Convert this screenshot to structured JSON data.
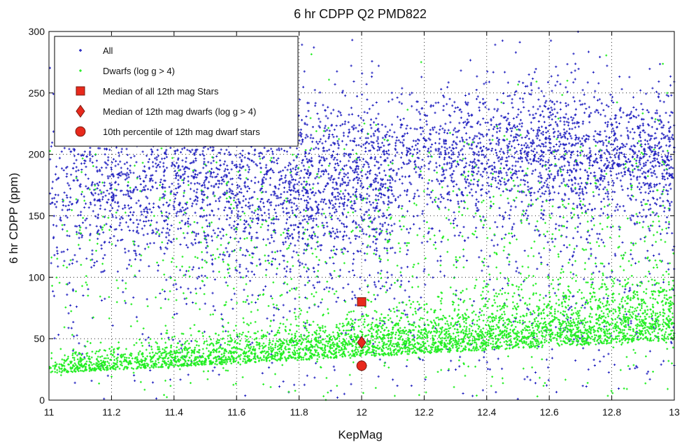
{
  "chart_data": {
    "type": "scatter",
    "title": "6 hr CDPP Q2 PMD822",
    "xlabel": "KepMag",
    "ylabel": "6 hr CDPP (ppm)",
    "xlim": [
      11,
      13
    ],
    "ylim": [
      0,
      300
    ],
    "xticks": [
      "11",
      "11.2",
      "11.4",
      "11.6",
      "11.8",
      "12",
      "12.2",
      "12.4",
      "12.6",
      "12.8",
      "13"
    ],
    "yticks": [
      "0",
      "50",
      "100",
      "150",
      "200",
      "250",
      "300"
    ],
    "grid": true,
    "legend_position": "top-left",
    "series": [
      {
        "name": "All",
        "color": "#1f1fbf",
        "marker": "plus",
        "bands": [
          {
            "x": [
              11.0,
              12.1
            ],
            "y_center": 175,
            "y_spread": 35,
            "weight": 0.45
          },
          {
            "x": [
              12.1,
              13.0
            ],
            "y_center": 200,
            "y_spread": 28,
            "weight": 0.35
          },
          {
            "x": [
              11.0,
              13.0
            ],
            "y_center": 110,
            "y_spread": 70,
            "weight": 0.2
          }
        ]
      },
      {
        "name": "Dwarfs (log g > 4)",
        "color": "#22ee22",
        "marker": "dot",
        "bands": [
          {
            "x": [
              11.0,
              13.0
            ],
            "y_start": 28,
            "y_end": 55,
            "y_spread": 18,
            "weight": 0.75
          },
          {
            "x": [
              11.0,
              13.0
            ],
            "y_center": 110,
            "y_spread": 60,
            "weight": 0.25
          }
        ]
      },
      {
        "name": "Median of all 12th mag Stars",
        "color": "#e8291c",
        "marker": "square",
        "points": [
          {
            "x": 12.0,
            "y": 80
          }
        ]
      },
      {
        "name": "Median of 12th mag dwarfs (log g > 4)",
        "color": "#e8291c",
        "marker": "diamond",
        "points": [
          {
            "x": 12.0,
            "y": 47
          }
        ]
      },
      {
        "name": "10th percentile of 12th mag dwarf stars",
        "color": "#e8291c",
        "marker": "circle",
        "points": [
          {
            "x": 12.0,
            "y": 28
          }
        ]
      }
    ]
  }
}
